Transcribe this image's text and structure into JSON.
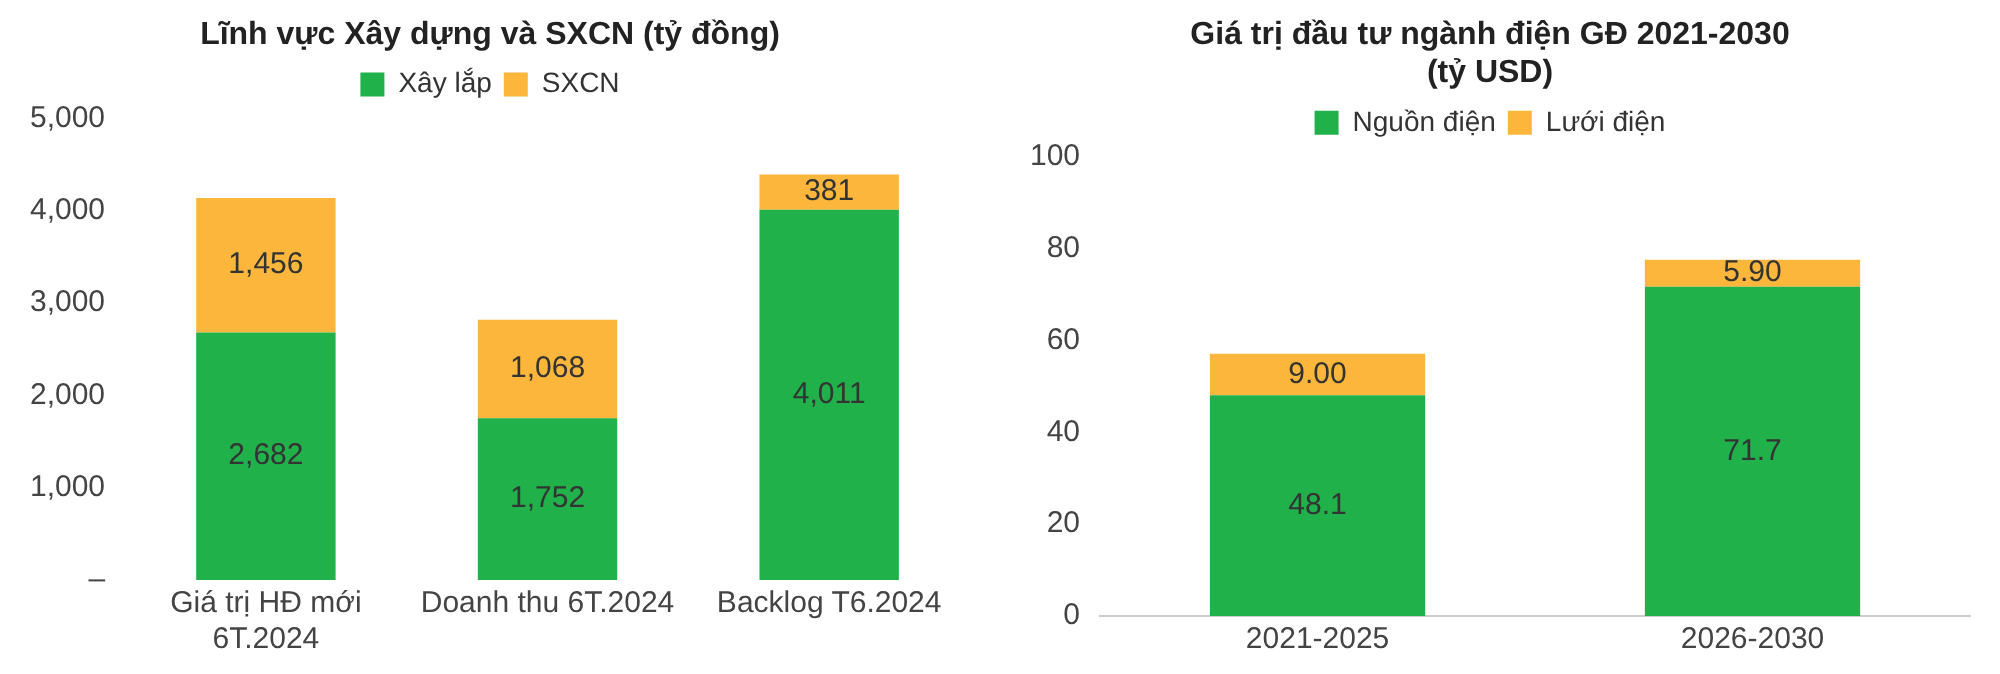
{
  "chart_data": [
    {
      "type": "bar",
      "title": "Lĩnh vực Xây dựng và SXCN (tỷ đồng)",
      "categories": [
        "Giá trị HĐ mới\n6T.2024",
        "Doanh thu 6T.2024",
        "Backlog T6.2024"
      ],
      "stacked": true,
      "series": [
        {
          "name": "Xây lắp",
          "color": "#21b14b",
          "values": [
            2682,
            1752,
            4011
          ],
          "value_labels": [
            "2,682",
            "1,752",
            "4,011"
          ]
        },
        {
          "name": "SXCN",
          "color": "#fbb63b",
          "values": [
            1456,
            1068,
            381
          ],
          "value_labels": [
            "1,456",
            "1,068",
            "381"
          ]
        }
      ],
      "ylim": [
        0,
        5000
      ],
      "yticks": [
        {
          "value": 0,
          "label": "–"
        },
        {
          "value": 1000,
          "label": "1,000"
        },
        {
          "value": 2000,
          "label": "2,000"
        },
        {
          "value": 3000,
          "label": "3,000"
        },
        {
          "value": 4000,
          "label": "4,000"
        },
        {
          "value": 5000,
          "label": "5,000"
        }
      ],
      "grid": false,
      "legend": "top"
    },
    {
      "type": "bar",
      "title": "Giá trị đầu tư ngành điện GĐ 2021-2030\n(tỷ USD)",
      "categories": [
        "2021-2025",
        "2026-2030"
      ],
      "stacked": true,
      "series": [
        {
          "name": "Nguồn điện",
          "color": "#21b14b",
          "values": [
            48.1,
            71.7
          ],
          "value_labels": [
            "48.1",
            "71.7"
          ]
        },
        {
          "name": "Lưới điện",
          "color": "#fbb63b",
          "values": [
            9.0,
            5.9
          ],
          "value_labels": [
            "9.00",
            "5.90"
          ]
        }
      ],
      "ylim": [
        0,
        100
      ],
      "yticks": [
        0,
        20,
        40,
        60,
        80,
        100
      ],
      "grid": false,
      "legend": "top"
    }
  ]
}
